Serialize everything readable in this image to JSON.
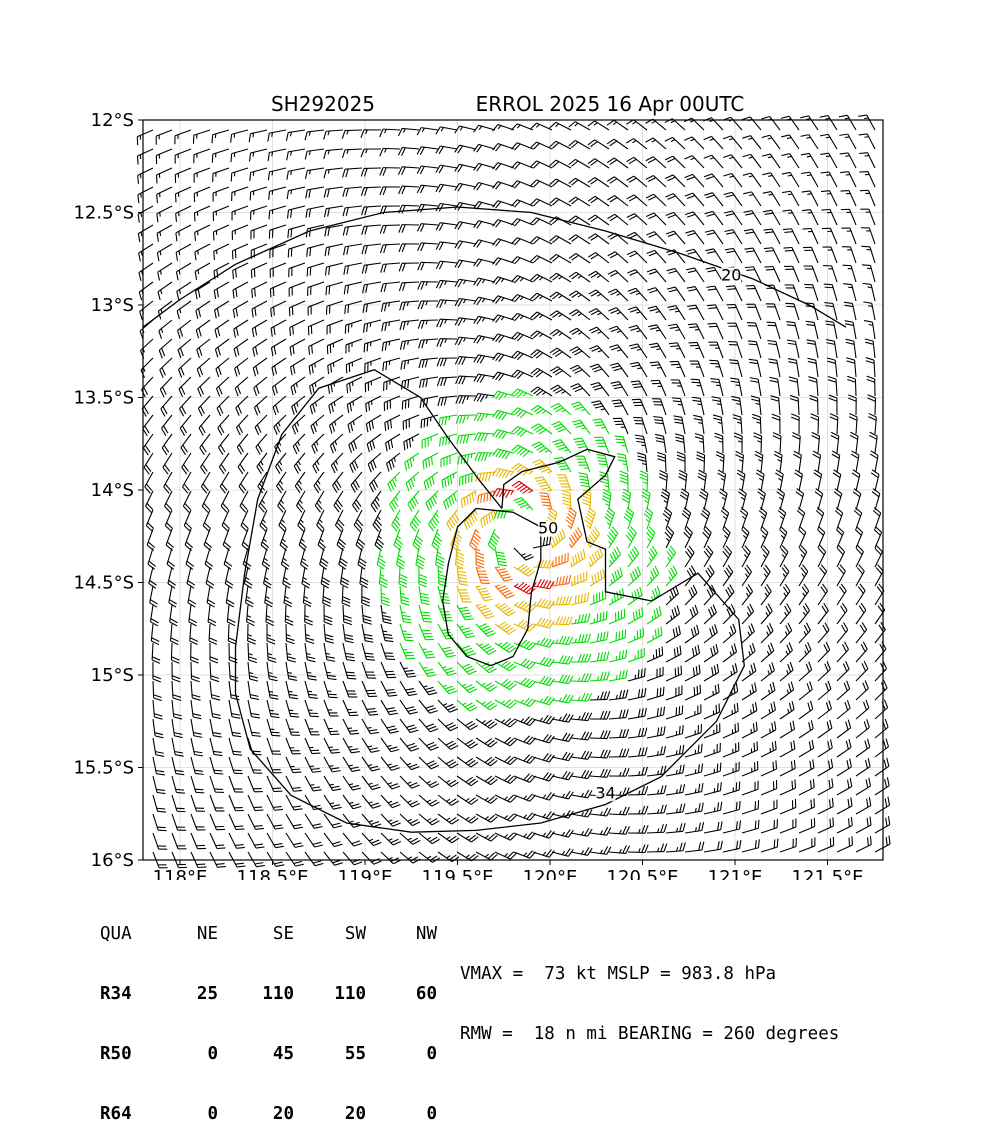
{
  "chart_data": {
    "type": "wind-barb-map",
    "storm_id": "SH292025",
    "title": "ERROL 2025 16 Apr 00UTC",
    "xlim": [
      117.8,
      121.8
    ],
    "ylim": [
      -16.0,
      -12.0
    ],
    "x_ticks": [
      {
        "value": 118.0,
        "label": "118°E"
      },
      {
        "value": 118.5,
        "label": "118.5°E"
      },
      {
        "value": 119.0,
        "label": "119°E"
      },
      {
        "value": 119.5,
        "label": "119.5°E"
      },
      {
        "value": 120.0,
        "label": "120°E"
      },
      {
        "value": 120.5,
        "label": "120.5°E"
      },
      {
        "value": 121.0,
        "label": "121°E"
      },
      {
        "value": 121.5,
        "label": "121.5°E"
      }
    ],
    "y_ticks": [
      {
        "value": -12.0,
        "label": "12°S"
      },
      {
        "value": -12.5,
        "label": "12.5°S"
      },
      {
        "value": -13.0,
        "label": "13°S"
      },
      {
        "value": -13.5,
        "label": "13.5°S"
      },
      {
        "value": -14.0,
        "label": "14°S"
      },
      {
        "value": -14.5,
        "label": "14.5°S"
      },
      {
        "value": -15.0,
        "label": "15°S"
      },
      {
        "value": -15.5,
        "label": "15.5°S"
      },
      {
        "value": -16.0,
        "label": "16°S"
      }
    ],
    "grid": true,
    "center": {
      "lon": 119.85,
      "lat": -14.22
    },
    "contours": [
      {
        "level": "20",
        "label_at": {
          "lon": 120.98,
          "lat": -12.85
        },
        "points": [
          [
            117.8,
            -13.12
          ],
          [
            118.0,
            -12.97
          ],
          [
            118.3,
            -12.78
          ],
          [
            118.7,
            -12.6
          ],
          [
            119.1,
            -12.5
          ],
          [
            119.5,
            -12.47
          ],
          [
            119.9,
            -12.5
          ],
          [
            120.3,
            -12.6
          ],
          [
            120.7,
            -12.72
          ],
          [
            121.1,
            -12.86
          ],
          [
            121.4,
            -13.0
          ],
          [
            121.6,
            -13.12
          ]
        ]
      },
      {
        "level": "34",
        "label_at": {
          "lon": 120.3,
          "lat": -15.65
        },
        "points": [
          [
            119.74,
            -14.1
          ],
          [
            119.62,
            -13.95
          ],
          [
            119.45,
            -13.72
          ],
          [
            119.3,
            -13.5
          ],
          [
            119.05,
            -13.35
          ],
          [
            118.75,
            -13.45
          ],
          [
            118.55,
            -13.7
          ],
          [
            118.42,
            -14.05
          ],
          [
            118.35,
            -14.45
          ],
          [
            118.3,
            -14.85
          ],
          [
            118.3,
            -15.1
          ],
          [
            118.38,
            -15.4
          ],
          [
            118.6,
            -15.65
          ],
          [
            118.9,
            -15.8
          ],
          [
            119.25,
            -15.85
          ],
          [
            119.6,
            -15.84
          ],
          [
            119.95,
            -15.8
          ],
          [
            120.3,
            -15.7
          ],
          [
            120.6,
            -15.55
          ],
          [
            120.9,
            -15.25
          ],
          [
            121.05,
            -14.95
          ],
          [
            121.02,
            -14.7
          ],
          [
            120.8,
            -14.45
          ],
          [
            120.55,
            -14.6
          ],
          [
            120.3,
            -14.55
          ],
          [
            120.3,
            -14.32
          ],
          [
            120.2,
            -14.28
          ],
          [
            120.15,
            -14.05
          ],
          [
            120.3,
            -13.92
          ],
          [
            120.35,
            -13.82
          ],
          [
            120.2,
            -13.78
          ],
          [
            120.05,
            -13.85
          ],
          [
            119.85,
            -13.9
          ],
          [
            119.75,
            -13.97
          ],
          [
            119.74,
            -14.1
          ]
        ]
      },
      {
        "level": "50",
        "label_at": {
          "lon": 119.99,
          "lat": -14.22
        },
        "points": [
          [
            119.95,
            -14.2
          ],
          [
            119.8,
            -14.12
          ],
          [
            119.6,
            -14.1
          ],
          [
            119.5,
            -14.2
          ],
          [
            119.45,
            -14.4
          ],
          [
            119.42,
            -14.6
          ],
          [
            119.45,
            -14.78
          ],
          [
            119.55,
            -14.9
          ],
          [
            119.68,
            -14.95
          ],
          [
            119.8,
            -14.9
          ],
          [
            119.88,
            -14.75
          ],
          [
            119.9,
            -14.55
          ],
          [
            119.95,
            -14.38
          ],
          [
            119.95,
            -14.2
          ]
        ]
      }
    ]
  },
  "wind_radii_table": {
    "header": [
      "QUA",
      "NE",
      "SE",
      "SW",
      "NW"
    ],
    "rows": [
      {
        "label": "R34",
        "values": [
          "25",
          "110",
          "110",
          "60"
        ]
      },
      {
        "label": "R50",
        "values": [
          "0",
          "45",
          "55",
          "0"
        ]
      },
      {
        "label": "R64",
        "values": [
          "0",
          "20",
          "20",
          "0"
        ]
      }
    ]
  },
  "stats": {
    "line1": "VMAX =  73 kt MSLP = 983.8 hPa",
    "line2": "RMW =  18 n mi BEARING = 260 degrees"
  },
  "colors": {
    "below_34": "#000000",
    "kt_34_to_50": "#00dd00",
    "kt_50_to_64": "#e6b800",
    "kt_64_plus": "#ff6600",
    "kt_core": "#dd0000"
  }
}
